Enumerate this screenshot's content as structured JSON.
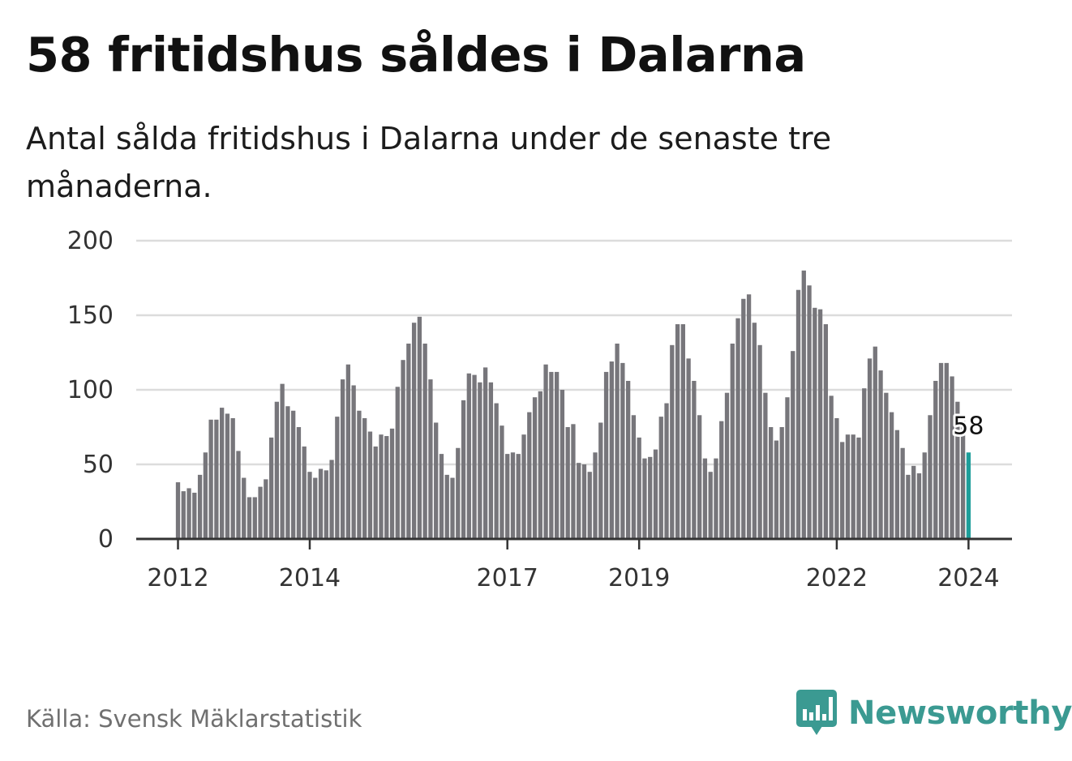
{
  "title": "58 fritidshus såldes i Dalarna",
  "subtitle": "Antal sålda fritidshus i Dalarna under de senaste tre månaderna.",
  "source": "Källa: Svensk Mäklarstatistik",
  "brand": {
    "name": "Newsworthy",
    "logo_icon": "bar-chart-speech-bubble-icon",
    "color": "#3b9a92"
  },
  "chart_data": {
    "type": "bar",
    "title": "58 fritidshus såldes i Dalarna",
    "subtitle": "Antal sålda fritidshus i Dalarna under de senaste tre månaderna.",
    "xlabel": "",
    "ylabel": "",
    "ylim": [
      0,
      200
    ],
    "yticks": [
      0,
      50,
      100,
      150,
      200
    ],
    "grid": true,
    "x_start": "2012-01",
    "x_end": "2024-01",
    "x_ticks": [
      {
        "label": "2012",
        "period": "2012-01"
      },
      {
        "label": "2014",
        "period": "2014-01"
      },
      {
        "label": "2017",
        "period": "2017-01"
      },
      {
        "label": "2019",
        "period": "2019-01"
      },
      {
        "label": "2022",
        "period": "2022-01"
      },
      {
        "label": "2024",
        "period": "2024-01"
      }
    ],
    "series": [
      {
        "name": "Antal sålda fritidshus",
        "color": "#77767b",
        "values": [
          38,
          32,
          34,
          31,
          43,
          58,
          80,
          80,
          88,
          84,
          81,
          59,
          41,
          28,
          28,
          35,
          40,
          68,
          92,
          104,
          89,
          86,
          75,
          62,
          45,
          41,
          47,
          46,
          53,
          82,
          107,
          117,
          103,
          86,
          81,
          72,
          62,
          70,
          69,
          74,
          102,
          120,
          131,
          145,
          149,
          131,
          107,
          78,
          57,
          43,
          41,
          61,
          93,
          111,
          110,
          105,
          115,
          105,
          91,
          76,
          57,
          58,
          57,
          70,
          85,
          95,
          99,
          117,
          112,
          112,
          100,
          75,
          77,
          51,
          50,
          45,
          58,
          78,
          112,
          119,
          131,
          118,
          106,
          83,
          68,
          54,
          55,
          60,
          82,
          91,
          130,
          144,
          144,
          121,
          106,
          83,
          54,
          45,
          54,
          79,
          98,
          131,
          148,
          161,
          164,
          145,
          130,
          98,
          75,
          66,
          75,
          95,
          126,
          167,
          180,
          170,
          155,
          154,
          144,
          96,
          81,
          65,
          70,
          70,
          68,
          101,
          121,
          129,
          113,
          98,
          85,
          73,
          61,
          43,
          49,
          44,
          58,
          83,
          106,
          118,
          118,
          109,
          92,
          82,
          58
        ]
      }
    ],
    "highlight": {
      "period": "2024-01",
      "value": 58,
      "label": "58",
      "color": "#1e9e9a"
    }
  }
}
